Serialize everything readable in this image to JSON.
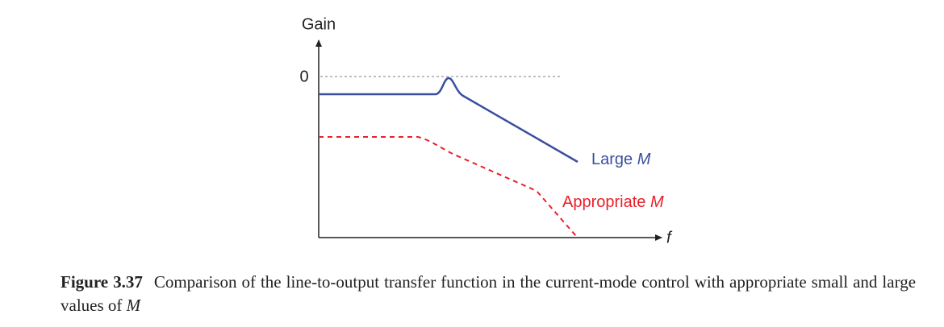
{
  "figure": {
    "y_axis_label": "Gain",
    "y_tick": "0",
    "x_axis_label": "f",
    "curves": [
      {
        "name": "Large",
        "variable": "M",
        "color": "#3a4f9f"
      },
      {
        "name": "Appropriate",
        "variable": "M",
        "color": "#e8202a"
      }
    ]
  },
  "caption": {
    "label": "Figure 3.37",
    "text": "Comparison of the line-to-output transfer function in the current-mode control with appropriate small and large values of",
    "variable": "M"
  }
}
